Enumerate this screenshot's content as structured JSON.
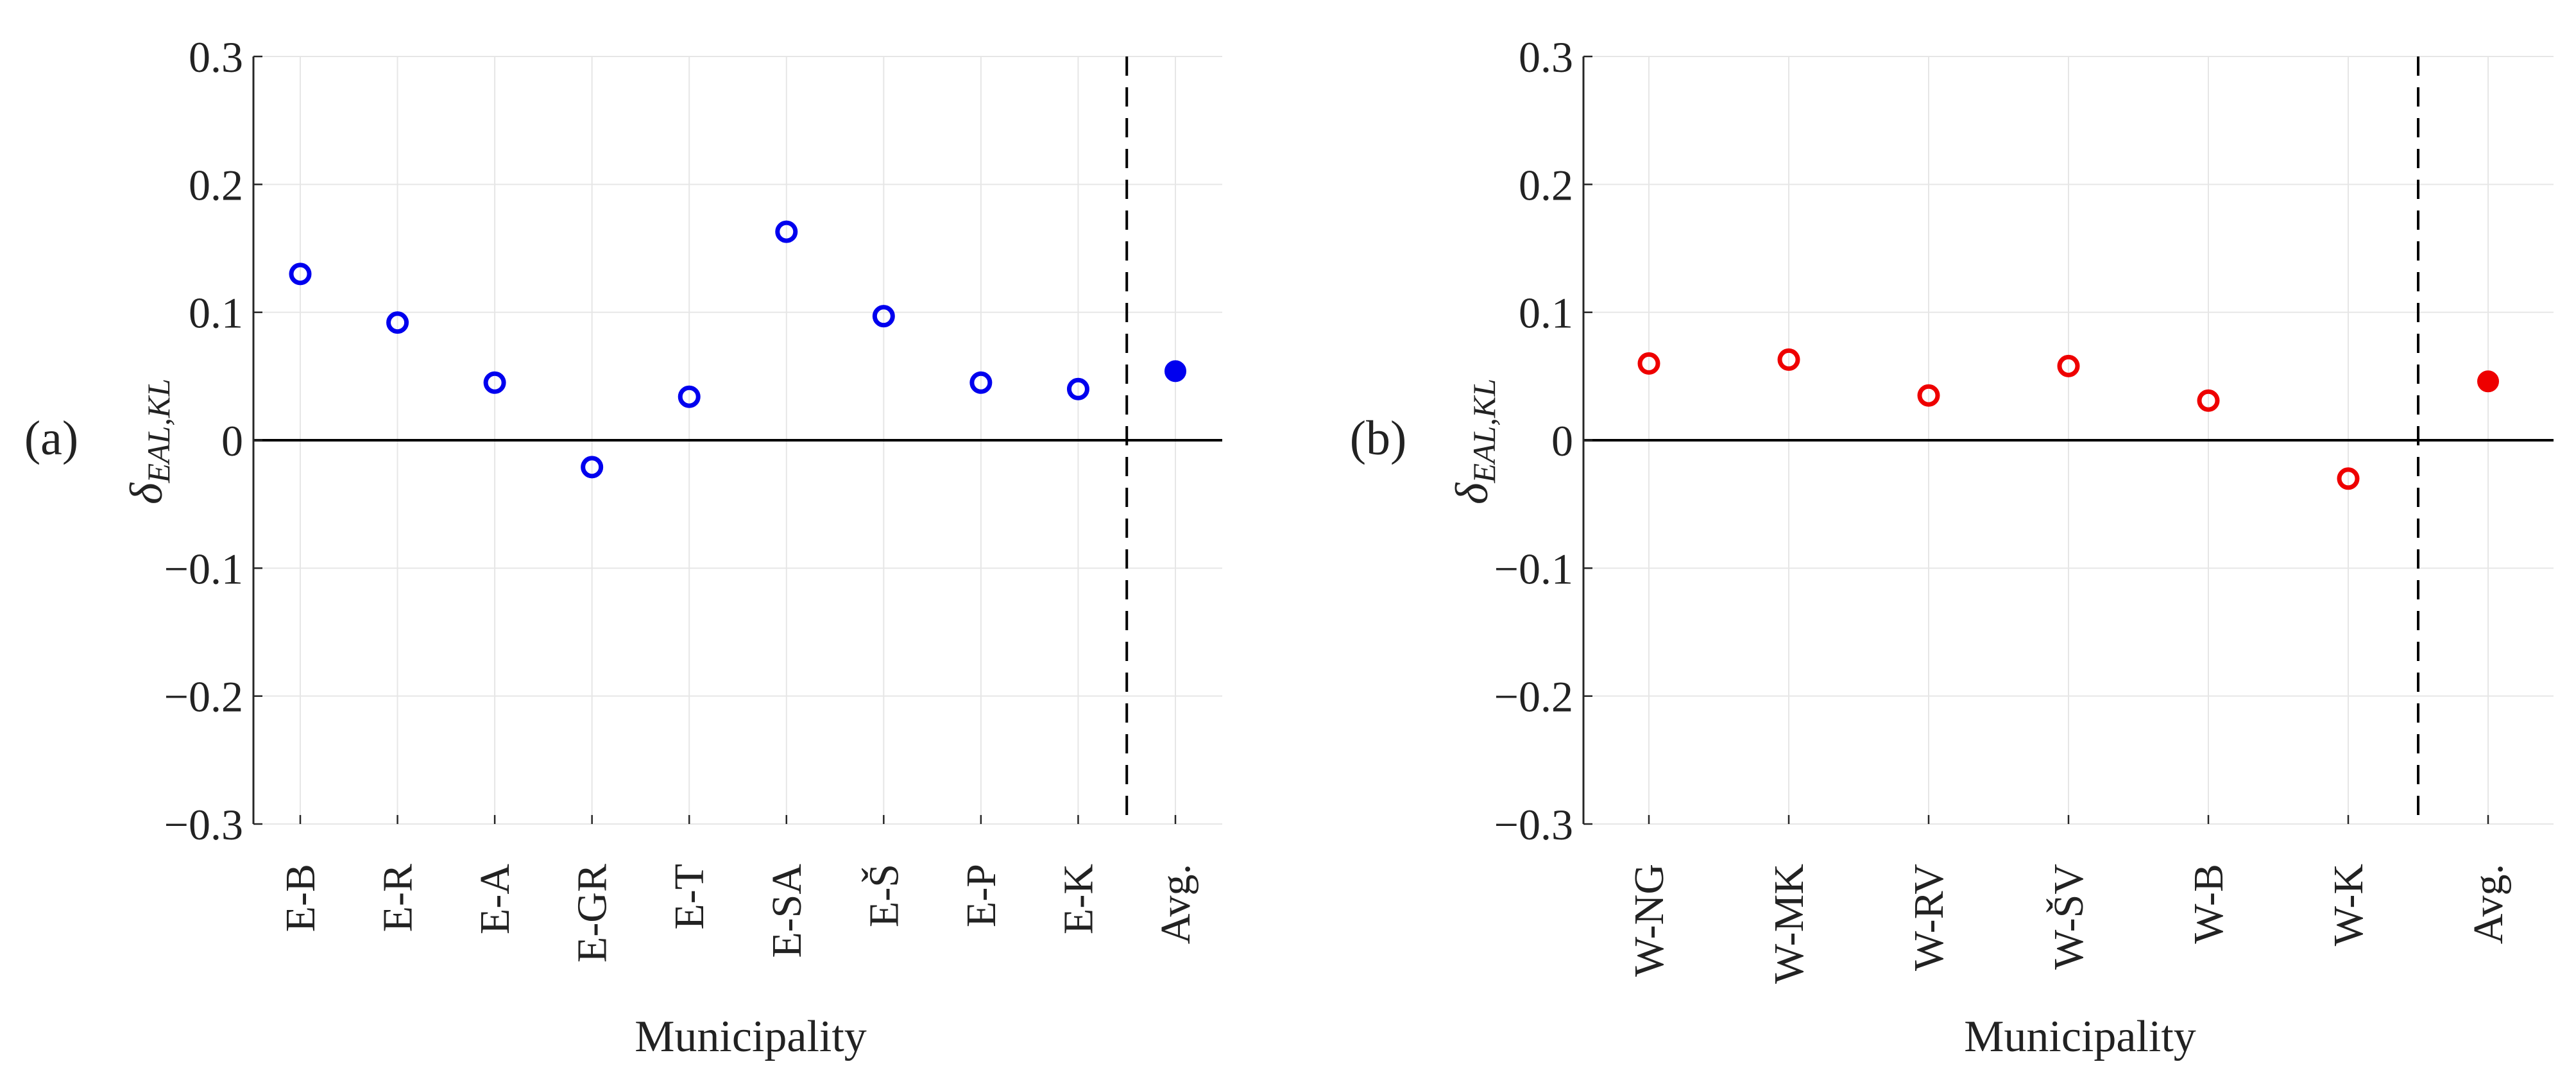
{
  "chart_data": [
    {
      "panel_label": "(a)",
      "type": "scatter",
      "categories": [
        "E-B",
        "E-R",
        "E-A",
        "E-GR",
        "E-T",
        "E-SA",
        "E-Š",
        "E-P",
        "E-K",
        "Avg."
      ],
      "values": [
        0.13,
        0.092,
        0.045,
        -0.021,
        0.034,
        0.163,
        0.097,
        0.045,
        0.04,
        0.054
      ],
      "avg_index": 9,
      "xlabel": "Municipality",
      "ylabel": "δ",
      "ylabel_sub": "EAL,KL",
      "ylim": [
        -0.3,
        0.3
      ],
      "yticks": [
        -0.3,
        -0.2,
        -0.1,
        0,
        0.1,
        0.2,
        0.3
      ],
      "ytick_labels": [
        "−0.3",
        "−0.2",
        "−0.1",
        "0",
        "0.1",
        "0.2",
        "0.3"
      ],
      "color": "#0000ee",
      "grid": true
    },
    {
      "panel_label": "(b)",
      "type": "scatter",
      "categories": [
        "W-NG",
        "W-MK",
        "W-RV",
        "W-ŠV",
        "W-B",
        "W-K",
        "Avg."
      ],
      "values": [
        0.06,
        0.063,
        0.035,
        0.058,
        0.031,
        -0.03,
        0.046
      ],
      "avg_index": 6,
      "xlabel": "Municipality",
      "ylabel": "δ",
      "ylabel_sub": "EAL,KL",
      "ylim": [
        -0.3,
        0.3
      ],
      "yticks": [
        -0.3,
        -0.2,
        -0.1,
        0,
        0.1,
        0.2,
        0.3
      ],
      "ytick_labels": [
        "−0.3",
        "−0.2",
        "−0.1",
        "0",
        "0.1",
        "0.2",
        "0.3"
      ],
      "color": "#ee0000",
      "grid": true
    }
  ]
}
